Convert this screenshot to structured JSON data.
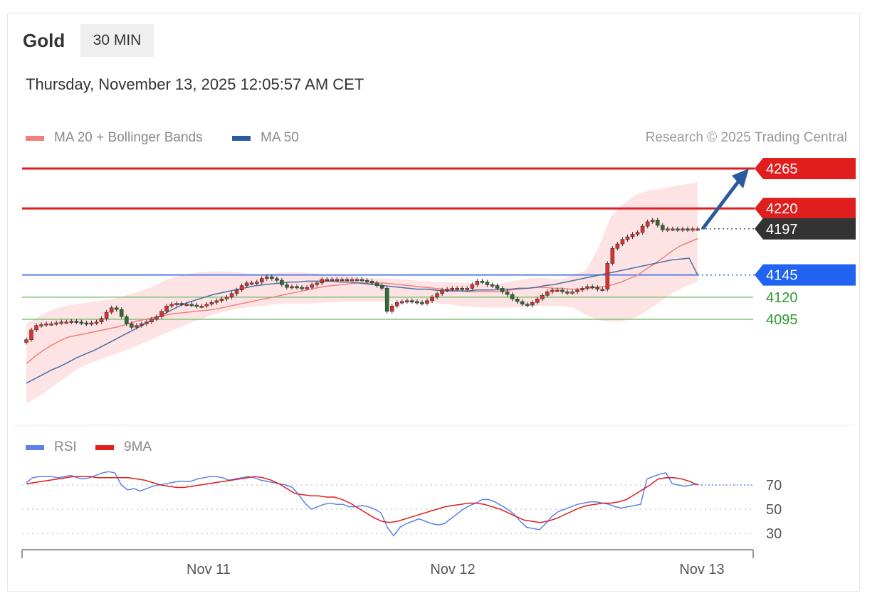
{
  "header": {
    "instrument": "Gold",
    "timeframe": "30 MIN",
    "datetime": "Thursday, November 13, 2025 12:05:57 AM CET"
  },
  "legend": {
    "ma20": "MA 20 + Bollinger Bands",
    "ma50": "MA 50",
    "credit": "Research © 2025 Trading Central",
    "rsi": "RSI",
    "rsi_ma": "9MA"
  },
  "colors": {
    "resistance": "#e01e1e",
    "support_line": "#5b82e8",
    "support_tag": "#1f63f0",
    "pivot": "#82c47a",
    "pivot_text": "#2e9a2e",
    "last_tag": "#333333",
    "ma20": "#f08080",
    "ma50": "#4a6fa5",
    "band_fill": "#fde3e3",
    "candle_up": "#e0302e",
    "candle_down": "#2f6e2f",
    "rsi": "#5b82e8",
    "rsi_ma": "#e01e1e",
    "arrow": "#2c5aa0"
  },
  "chart_data": {
    "type": "candlestick",
    "instrument": "Gold",
    "interval": "30 MIN",
    "y_range": [
      4000,
      4280
    ],
    "x_labels": [
      "Nov 11",
      "Nov 12",
      "Nov 13"
    ],
    "levels": [
      {
        "name": "resistance-2",
        "value": 4265,
        "label": "4265"
      },
      {
        "name": "resistance-1",
        "value": 4220,
        "label": "4220"
      },
      {
        "name": "last-price",
        "value": 4197,
        "label": "4197"
      },
      {
        "name": "support",
        "value": 4145,
        "label": "4145"
      },
      {
        "name": "pivot-1",
        "value": 4120,
        "label": "4120"
      },
      {
        "name": "pivot-2",
        "value": 4095,
        "label": "4095"
      }
    ],
    "close": [
      4072,
      4083,
      4088,
      4089,
      4090,
      4090,
      4091,
      4092,
      4092,
      4093,
      4092,
      4091,
      4090,
      4091,
      4092,
      4096,
      4103,
      4108,
      4106,
      4098,
      4090,
      4086,
      4088,
      4090,
      4092,
      4095,
      4098,
      4104,
      4110,
      4112,
      4113,
      4112,
      4112,
      4111,
      4110,
      4110,
      4112,
      4114,
      4116,
      4118,
      4120,
      4124,
      4128,
      4133,
      4136,
      4136,
      4137,
      4141,
      4143,
      4141,
      4139,
      4134,
      4131,
      4132,
      4131,
      4130,
      4131,
      4134,
      4136,
      4140,
      4140,
      4140,
      4140,
      4140,
      4140,
      4140,
      4140,
      4139,
      4138,
      4136,
      4133,
      4130,
      4104,
      4110,
      4114,
      4115,
      4116,
      4115,
      4114,
      4113,
      4116,
      4120,
      4124,
      4128,
      4129,
      4130,
      4130,
      4129,
      4130,
      4134,
      4138,
      4137,
      4134,
      4133,
      4130,
      4126,
      4123,
      4118,
      4115,
      4112,
      4111,
      4114,
      4118,
      4122,
      4126,
      4128,
      4128,
      4126,
      4125,
      4126,
      4128,
      4130,
      4132,
      4131,
      4129,
      4129,
      4158,
      4175,
      4180,
      4185,
      4188,
      4191,
      4193,
      4200,
      4205,
      4207,
      4201,
      4196,
      4197,
      4197,
      4196,
      4197,
      4196,
      4197,
      4197
    ],
    "ma20": [
      4045,
      4053,
      4060,
      4066,
      4071,
      4075,
      4077,
      4079,
      4081,
      4083,
      4085,
      4087,
      4090,
      4093,
      4095,
      4097,
      4099,
      4101,
      4102,
      4103,
      4104,
      4105,
      4106,
      4108,
      4110,
      4112,
      4114,
      4116,
      4118,
      4120,
      4122,
      4124,
      4126,
      4128,
      4130,
      4132,
      4133,
      4134,
      4135,
      4136,
      4136,
      4136,
      4136,
      4135,
      4134,
      4133,
      4132,
      4131,
      4130,
      4129,
      4128,
      4127,
      4126,
      4126,
      4126,
      4126,
      4127,
      4128,
      4129,
      4130,
      4131,
      4131,
      4130,
      4130,
      4129,
      4129,
      4130,
      4131,
      4132,
      4134,
      4137,
      4141,
      4145,
      4152,
      4158,
      4165,
      4172,
      4178,
      4182,
      4186
    ],
    "ma50": [
      4023,
      4028,
      4033,
      4038,
      4042,
      4047,
      4052,
      4056,
      4060,
      4065,
      4070,
      4075,
      4080,
      4085,
      4090,
      4095,
      4100,
      4105,
      4110,
      4114,
      4117,
      4120,
      4123,
      4125,
      4127,
      4129,
      4131,
      4133,
      4134,
      4135,
      4136,
      4137,
      4137,
      4138,
      4138,
      4138,
      4138,
      4137,
      4137,
      4136,
      4135,
      4134,
      4133,
      4132,
      4131,
      4130,
      4129,
      4129,
      4128,
      4127,
      4127,
      4127,
      4127,
      4128,
      4128,
      4128,
      4129,
      4129,
      4130,
      4130,
      4131,
      4133,
      4134,
      4136,
      4138,
      4140,
      4142,
      4144,
      4146,
      4148,
      4150,
      4152,
      4154,
      4156,
      4158,
      4160,
      4162,
      4163,
      4164,
      4145
    ],
    "band_upper": [
      4090,
      4098,
      4105,
      4110,
      4112,
      4114,
      4116,
      4118,
      4122,
      4126,
      4131,
      4138,
      4143,
      4146,
      4148,
      4149,
      4149,
      4148,
      4146,
      4146,
      4147,
      4148,
      4148,
      4147,
      4146,
      4145,
      4144,
      4142,
      4141,
      4141,
      4140,
      4139,
      4138,
      4137,
      4137,
      4136,
      4136,
      4135,
      4135,
      4138,
      4140,
      4142,
      4141,
      4140,
      4145,
      4150,
      4175,
      4210,
      4225,
      4235,
      4240,
      4242,
      4245,
      4247,
      4250
    ],
    "band_lower": [
      4000,
      4008,
      4018,
      4028,
      4038,
      4045,
      4050,
      4055,
      4060,
      4066,
      4072,
      4078,
      4084,
      4090,
      4095,
      4100,
      4104,
      4107,
      4109,
      4110,
      4112,
      4113,
      4113,
      4113,
      4114,
      4114,
      4115,
      4115,
      4115,
      4115,
      4115,
      4115,
      4114,
      4113,
      4112,
      4110,
      4109,
      4108,
      4108,
      4108,
      4109,
      4110,
      4110,
      4110,
      4108,
      4100,
      4094,
      4092,
      4093,
      4097,
      4105,
      4115,
      4125,
      4132,
      4138
    ],
    "arrow_target": 4265,
    "rsi_panel": {
      "y_ticks": [
        70,
        50,
        30
      ],
      "rsi": [
        72,
        76,
        77,
        77,
        77,
        76,
        77,
        78,
        76,
        75,
        76,
        78,
        80,
        81,
        80,
        70,
        66,
        67,
        65,
        67,
        69,
        70,
        71,
        72,
        73,
        73,
        73,
        75,
        76,
        77,
        77,
        76,
        74,
        75,
        76,
        77,
        76,
        74,
        73,
        72,
        71,
        70,
        68,
        62,
        55,
        50,
        52,
        54,
        55,
        54,
        54,
        52,
        52,
        53,
        52,
        50,
        47,
        35,
        28,
        35,
        38,
        40,
        42,
        40,
        38,
        37,
        38,
        42,
        46,
        50,
        53,
        55,
        58,
        58,
        56,
        53,
        50,
        46,
        40,
        35,
        34,
        33,
        38,
        44,
        48,
        50,
        52,
        54,
        55,
        56,
        56,
        55,
        54,
        52,
        51,
        52,
        53,
        54,
        75,
        77,
        79,
        80,
        71,
        70,
        69,
        70,
        71
      ],
      "rsi_ma": [
        71,
        72,
        73,
        74,
        75,
        76,
        77,
        77,
        77,
        76,
        76,
        76,
        76,
        76,
        75,
        74,
        72,
        70,
        69,
        68,
        68,
        69,
        70,
        71,
        72,
        73,
        74,
        75,
        76,
        77,
        76,
        74,
        71,
        67,
        63,
        62,
        61,
        61,
        60,
        60,
        58,
        55,
        51,
        47,
        43,
        40,
        39,
        40,
        42,
        44,
        46,
        48,
        50,
        52,
        53,
        54,
        55,
        55,
        54,
        52,
        50,
        47,
        44,
        41,
        40,
        39,
        40,
        42,
        45,
        48,
        51,
        53,
        54,
        55,
        55,
        56,
        58,
        62,
        66,
        70,
        75,
        76,
        76,
        75,
        73,
        70
      ]
    }
  }
}
